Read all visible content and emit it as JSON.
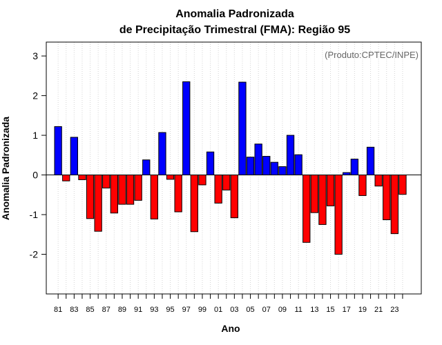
{
  "chart_data": {
    "type": "bar",
    "title_line1": "Anomalia Padronizada",
    "title_line2": "de Precipitação Trimestral (FMA): Região 95",
    "xlabel": "Ano",
    "ylabel": "Anomalia Padronizada",
    "annotation": "(Produto:CPTEC/INPE)",
    "ylim": [
      -3.0,
      3.35
    ],
    "yticks": [
      -2,
      -1,
      0,
      1,
      2,
      3
    ],
    "ytick_labels": [
      "-2",
      "-1",
      "0",
      "1",
      "2",
      "3"
    ],
    "xtick_labels": [
      "81",
      "83",
      "85",
      "87",
      "89",
      "91",
      "93",
      "95",
      "97",
      "99",
      "01",
      "03",
      "05",
      "07",
      "09",
      "11",
      "13",
      "15",
      "17",
      "19",
      "21",
      "23"
    ],
    "years": [
      1981,
      1982,
      1983,
      1984,
      1985,
      1986,
      1987,
      1988,
      1989,
      1990,
      1991,
      1992,
      1993,
      1994,
      1995,
      1996,
      1997,
      1998,
      1999,
      2000,
      2001,
      2002,
      2003,
      2004,
      2005,
      2006,
      2007,
      2008,
      2009,
      2010,
      2011,
      2012,
      2013,
      2014,
      2015,
      2016,
      2017,
      2018,
      2019,
      2020,
      2021,
      2022,
      2023,
      2024
    ],
    "values": [
      1.22,
      -0.15,
      0.95,
      -0.12,
      -1.1,
      -1.42,
      -0.33,
      -0.96,
      -0.74,
      -0.74,
      -0.64,
      0.38,
      -1.11,
      1.07,
      -0.11,
      -0.93,
      2.35,
      -1.43,
      -0.25,
      0.58,
      -0.71,
      -0.38,
      -1.08,
      2.34,
      0.45,
      0.78,
      0.47,
      0.32,
      0.21,
      1.0,
      0.51,
      -1.7,
      -0.95,
      -1.25,
      -0.78,
      -2.0,
      0.06,
      0.4,
      -0.52,
      0.7,
      -0.28,
      -1.13,
      -1.48,
      -0.49
    ],
    "positive_color": "#0000ff",
    "negative_color": "#ff0000",
    "grid": true
  }
}
